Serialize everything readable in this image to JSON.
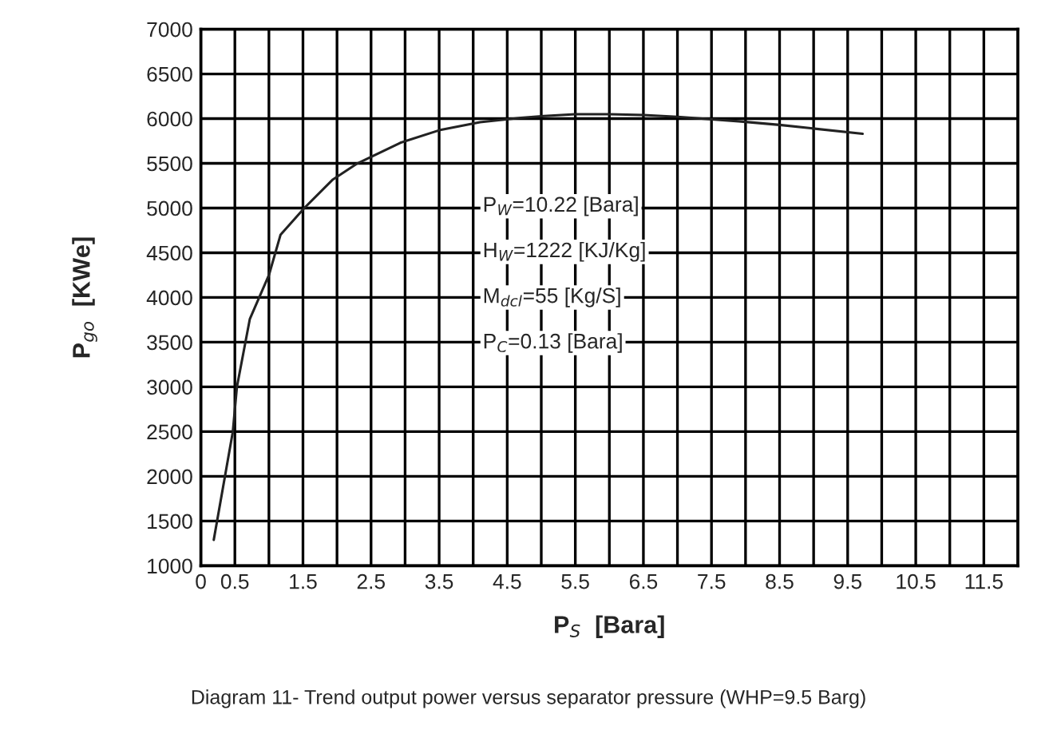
{
  "chart_data": {
    "type": "line",
    "title": "Diagram 11- Trend output power versus separator pressure (WHP=9.5 Barg)",
    "xlabel": "P$_{S}$  [Bara]",
    "ylabel": "P$_{go}$  [KWe]",
    "x": [
      0.19,
      0.47,
      0.53,
      0.72,
      1.0,
      1.17,
      1.52,
      1.94,
      2.3,
      2.93,
      3.5,
      4.1,
      4.7,
      5.04,
      5.5,
      6.0,
      6.5,
      7.0,
      7.9,
      8.5,
      9.72
    ],
    "series": [
      {
        "color": "#222222",
        "values": [
          1290,
          2500,
          3000,
          3760,
          4250,
          4700,
          5000,
          5320,
          5500,
          5730,
          5870,
          5960,
          6010,
          6030,
          6050,
          6050,
          6040,
          6020,
          5970,
          5930,
          5830
        ]
      }
    ],
    "xlim": [
      0,
      12
    ],
    "xticks": [
      0,
      0.5,
      {
        "value": 1,
        "label": null
      },
      1.5,
      {
        "value": 2,
        "label": null
      },
      2.5,
      {
        "value": 3,
        "label": null
      },
      3.5,
      {
        "value": 4,
        "label": null
      },
      4.5,
      {
        "value": 5,
        "label": null
      },
      5.5,
      {
        "value": 6,
        "label": null
      },
      6.5,
      {
        "value": 7,
        "label": null
      },
      7.5,
      {
        "value": 8,
        "label": null
      },
      8.5,
      {
        "value": 9,
        "label": null
      },
      9.5,
      {
        "value": 10,
        "label": null
      },
      10.5,
      {
        "value": 11,
        "label": null
      },
      11.5,
      {
        "value": 12,
        "label": null
      }
    ],
    "ylim": [
      1000,
      7000
    ],
    "yticks": [
      1000,
      1500,
      2000,
      2500,
      3000,
      3500,
      4000,
      4500,
      5000,
      5500,
      6000,
      6500,
      7000
    ],
    "grid": true,
    "marker": "none",
    "line_style": "solid",
    "annotations": [
      "P$_{W}$=10.22 [Bara]",
      "H$_{W}$=1222 [KJ/Kg]",
      "M$_{dcl}$=55 [Kg/S]",
      "P$_{C}$=0.13 [Bara]"
    ]
  }
}
